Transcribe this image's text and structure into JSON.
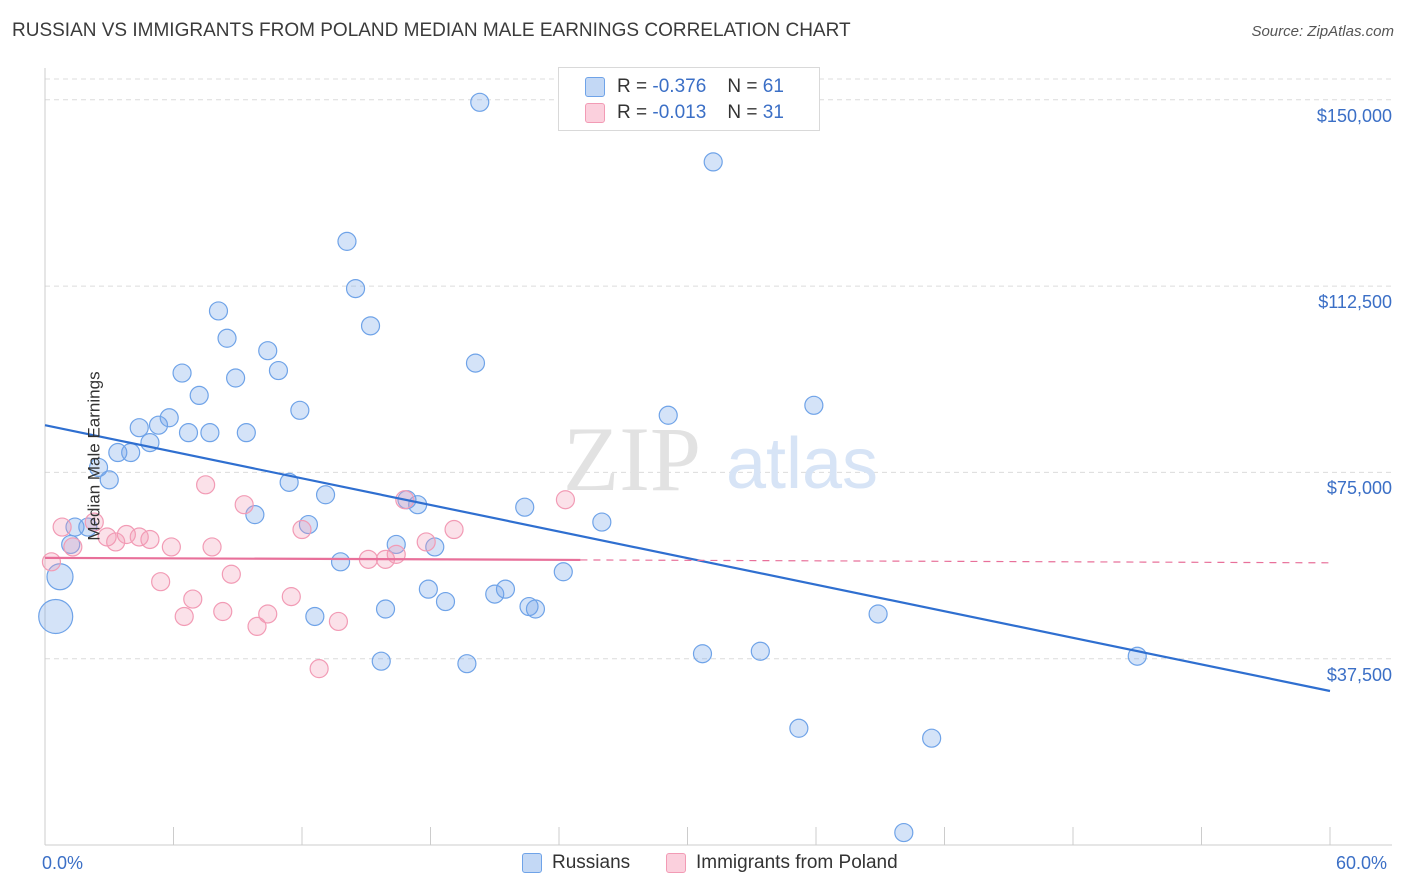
{
  "title": "RUSSIAN VS IMMIGRANTS FROM POLAND MEDIAN MALE EARNINGS CORRELATION CHART",
  "source": "Source: ZipAtlas.com",
  "watermark": {
    "zip": "ZIP",
    "atlas": "atlas"
  },
  "legend_top": [
    {
      "r_label": "R =",
      "r_value": "-0.376",
      "n_label": "N =",
      "n_value": "61"
    },
    {
      "r_label": "R =",
      "r_value": "-0.013",
      "n_label": "N =",
      "n_value": "31"
    }
  ],
  "legend_bottom": [
    "Russians",
    "Immigrants from Poland"
  ],
  "colors": {
    "russians": "#6fa3e8",
    "poland": "#f29bb5",
    "blue_line": "#2f6fd0",
    "pink_line": "#e8709a",
    "tick_text": "#3b6fc6"
  },
  "chart_data": {
    "type": "scatter",
    "title": "RUSSIAN VS IMMIGRANTS FROM POLAND MEDIAN MALE EARNINGS CORRELATION CHART",
    "xlabel": "",
    "ylabel": "Median Male Earnings",
    "xlim": [
      0,
      60
    ],
    "ylim": [
      0,
      156000
    ],
    "x_tick_labels": [
      "0.0%",
      "60.0%"
    ],
    "y_ticks": [
      {
        "value": 37500,
        "label": "$37,500"
      },
      {
        "value": 75000,
        "label": "$75,000"
      },
      {
        "value": 112500,
        "label": "$112,500"
      },
      {
        "value": 150000,
        "label": "$150,000"
      }
    ],
    "series": [
      {
        "name": "Russians",
        "points": [
          [
            0.5,
            46000,
            3
          ],
          [
            0.7,
            54000,
            2
          ],
          [
            1.2,
            60500,
            1
          ],
          [
            1.4,
            64000,
            1
          ],
          [
            2.0,
            64000,
            1
          ],
          [
            2.5,
            76000,
            1
          ],
          [
            3.0,
            73500,
            1
          ],
          [
            3.4,
            79000,
            1
          ],
          [
            4.0,
            79000,
            1
          ],
          [
            4.4,
            84000,
            1
          ],
          [
            4.9,
            81000,
            1
          ],
          [
            5.3,
            84500,
            1
          ],
          [
            5.8,
            86000,
            1
          ],
          [
            6.4,
            95000,
            1
          ],
          [
            6.7,
            83000,
            1
          ],
          [
            7.2,
            90500,
            1
          ],
          [
            7.7,
            83000,
            1
          ],
          [
            8.1,
            107500,
            1
          ],
          [
            8.5,
            102000,
            1
          ],
          [
            8.9,
            94000,
            1
          ],
          [
            9.4,
            83000,
            1
          ],
          [
            9.8,
            66500,
            1
          ],
          [
            10.4,
            99500,
            1
          ],
          [
            10.9,
            95500,
            1
          ],
          [
            11.4,
            73000,
            1
          ],
          [
            11.9,
            87500,
            1
          ],
          [
            12.3,
            64500,
            1
          ],
          [
            12.6,
            46000,
            1
          ],
          [
            13.1,
            70500,
            1
          ],
          [
            13.8,
            57000,
            1
          ],
          [
            14.1,
            121500,
            1
          ],
          [
            14.5,
            112000,
            1
          ],
          [
            15.2,
            104500,
            1
          ],
          [
            15.7,
            37000,
            1
          ],
          [
            15.9,
            47500,
            1
          ],
          [
            16.4,
            60500,
            1
          ],
          [
            16.9,
            69500,
            1
          ],
          [
            17.4,
            68500,
            1
          ],
          [
            17.9,
            51500,
            1
          ],
          [
            18.2,
            60000,
            1
          ],
          [
            18.7,
            49000,
            1
          ],
          [
            19.7,
            36500,
            1
          ],
          [
            20.1,
            97000,
            1
          ],
          [
            20.3,
            149500,
            1
          ],
          [
            21.0,
            50500,
            1
          ],
          [
            21.5,
            51500,
            1
          ],
          [
            22.4,
            68000,
            1
          ],
          [
            22.6,
            48000,
            1
          ],
          [
            22.9,
            47500,
            1
          ],
          [
            24.2,
            55000,
            1
          ],
          [
            26.0,
            65000,
            1
          ],
          [
            29.1,
            86500,
            1
          ],
          [
            30.7,
            38500,
            1
          ],
          [
            31.2,
            137500,
            1
          ],
          [
            33.4,
            39000,
            1
          ],
          [
            35.2,
            23500,
            1
          ],
          [
            35.9,
            88500,
            1
          ],
          [
            38.9,
            46500,
            1
          ],
          [
            41.4,
            21500,
            1
          ],
          [
            40.1,
            2500,
            1
          ],
          [
            51.0,
            38000,
            1
          ]
        ],
        "trend": {
          "x": [
            0,
            60
          ],
          "y": [
            84500,
            31000
          ]
        }
      },
      {
        "name": "Immigrants from Poland",
        "points": [
          [
            0.3,
            57000,
            1
          ],
          [
            0.8,
            64000,
            1
          ],
          [
            1.3,
            60000,
            1
          ],
          [
            2.3,
            65000,
            1
          ],
          [
            2.9,
            62000,
            1
          ],
          [
            3.3,
            61000,
            1
          ],
          [
            3.8,
            62500,
            1
          ],
          [
            4.4,
            62000,
            1
          ],
          [
            4.9,
            61500,
            1
          ],
          [
            5.4,
            53000,
            1
          ],
          [
            5.9,
            60000,
            1
          ],
          [
            6.5,
            46000,
            1
          ],
          [
            6.9,
            49500,
            1
          ],
          [
            7.5,
            72500,
            1
          ],
          [
            7.8,
            60000,
            1
          ],
          [
            8.3,
            47000,
            1
          ],
          [
            8.7,
            54500,
            1
          ],
          [
            9.3,
            68500,
            1
          ],
          [
            9.9,
            44000,
            1
          ],
          [
            10.4,
            46500,
            1
          ],
          [
            11.5,
            50000,
            1
          ],
          [
            12.0,
            63500,
            1
          ],
          [
            12.8,
            35500,
            1
          ],
          [
            13.7,
            45000,
            1
          ],
          [
            15.1,
            57500,
            1
          ],
          [
            15.9,
            57500,
            1
          ],
          [
            16.4,
            58500,
            1
          ],
          [
            16.8,
            69500,
            1
          ],
          [
            17.8,
            61000,
            1
          ],
          [
            19.1,
            63500,
            1
          ],
          [
            24.3,
            69500,
            1
          ]
        ],
        "trend": {
          "x": [
            0,
            60
          ],
          "y": [
            57800,
            56800
          ],
          "solid_until_x": 25
        }
      }
    ]
  }
}
